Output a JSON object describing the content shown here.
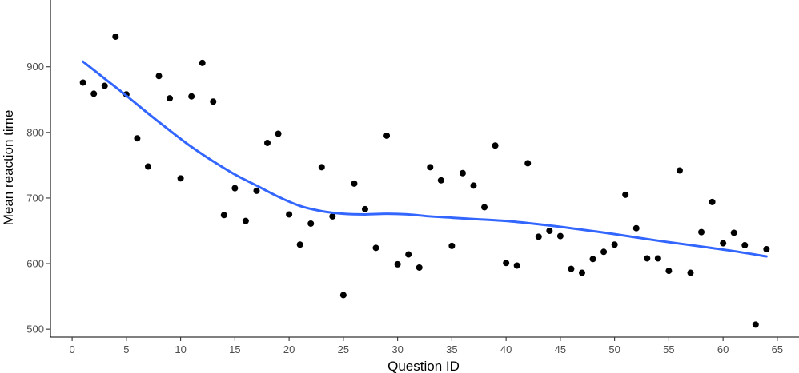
{
  "chart_data": {
    "type": "scatter",
    "xlabel": "Question ID",
    "ylabel": "Mean reaction time",
    "xlim": [
      -2,
      67
    ],
    "ylim": [
      488,
      1002
    ],
    "x_ticks": [
      0,
      5,
      10,
      15,
      20,
      25,
      30,
      35,
      40,
      45,
      50,
      55,
      60,
      65
    ],
    "y_ticks": [
      500,
      600,
      700,
      800,
      900
    ],
    "grid": false,
    "legend": "none",
    "series": [
      {
        "type": "scatter",
        "color": "#000000",
        "points": [
          {
            "x": 1,
            "y": 876
          },
          {
            "x": 2,
            "y": 859
          },
          {
            "x": 3,
            "y": 871
          },
          {
            "x": 4,
            "y": 946
          },
          {
            "x": 5,
            "y": 858
          },
          {
            "x": 6,
            "y": 791
          },
          {
            "x": 7,
            "y": 748
          },
          {
            "x": 8,
            "y": 886
          },
          {
            "x": 9,
            "y": 852
          },
          {
            "x": 10,
            "y": 730
          },
          {
            "x": 11,
            "y": 855
          },
          {
            "x": 12,
            "y": 906
          },
          {
            "x": 13,
            "y": 847
          },
          {
            "x": 14,
            "y": 674
          },
          {
            "x": 15,
            "y": 715
          },
          {
            "x": 16,
            "y": 665
          },
          {
            "x": 17,
            "y": 711
          },
          {
            "x": 18,
            "y": 784
          },
          {
            "x": 19,
            "y": 798
          },
          {
            "x": 20,
            "y": 675
          },
          {
            "x": 21,
            "y": 629
          },
          {
            "x": 22,
            "y": 661
          },
          {
            "x": 23,
            "y": 747
          },
          {
            "x": 24,
            "y": 672
          },
          {
            "x": 25,
            "y": 552
          },
          {
            "x": 26,
            "y": 722
          },
          {
            "x": 27,
            "y": 683
          },
          {
            "x": 28,
            "y": 624
          },
          {
            "x": 29,
            "y": 795
          },
          {
            "x": 30,
            "y": 599
          },
          {
            "x": 31,
            "y": 614
          },
          {
            "x": 32,
            "y": 594
          },
          {
            "x": 33,
            "y": 747
          },
          {
            "x": 34,
            "y": 727
          },
          {
            "x": 35,
            "y": 627
          },
          {
            "x": 36,
            "y": 738
          },
          {
            "x": 37,
            "y": 719
          },
          {
            "x": 38,
            "y": 686
          },
          {
            "x": 39,
            "y": 780
          },
          {
            "x": 40,
            "y": 601
          },
          {
            "x": 41,
            "y": 597
          },
          {
            "x": 42,
            "y": 753
          },
          {
            "x": 43,
            "y": 641
          },
          {
            "x": 44,
            "y": 650
          },
          {
            "x": 45,
            "y": 642
          },
          {
            "x": 46,
            "y": 592
          },
          {
            "x": 47,
            "y": 586
          },
          {
            "x": 48,
            "y": 607
          },
          {
            "x": 49,
            "y": 618
          },
          {
            "x": 50,
            "y": 629
          },
          {
            "x": 51,
            "y": 705
          },
          {
            "x": 52,
            "y": 654
          },
          {
            "x": 53,
            "y": 608
          },
          {
            "x": 54,
            "y": 608
          },
          {
            "x": 55,
            "y": 589
          },
          {
            "x": 56,
            "y": 742
          },
          {
            "x": 57,
            "y": 586
          },
          {
            "x": 58,
            "y": 648
          },
          {
            "x": 59,
            "y": 694
          },
          {
            "x": 60,
            "y": 631
          },
          {
            "x": 61,
            "y": 647
          },
          {
            "x": 62,
            "y": 628
          },
          {
            "x": 63,
            "y": 507
          },
          {
            "x": 64,
            "y": 622
          }
        ]
      },
      {
        "type": "line",
        "smooth": true,
        "color": "#3366ff",
        "points": [
          {
            "x": 1,
            "y": 908
          },
          {
            "x": 3,
            "y": 882
          },
          {
            "x": 5,
            "y": 856
          },
          {
            "x": 7,
            "y": 829
          },
          {
            "x": 9,
            "y": 803
          },
          {
            "x": 11,
            "y": 778
          },
          {
            "x": 13,
            "y": 756
          },
          {
            "x": 15,
            "y": 736
          },
          {
            "x": 17,
            "y": 719
          },
          {
            "x": 19,
            "y": 702
          },
          {
            "x": 21,
            "y": 688
          },
          {
            "x": 23,
            "y": 680
          },
          {
            "x": 25,
            "y": 676
          },
          {
            "x": 27,
            "y": 675
          },
          {
            "x": 29,
            "y": 676
          },
          {
            "x": 31,
            "y": 675
          },
          {
            "x": 33,
            "y": 672
          },
          {
            "x": 35,
            "y": 670
          },
          {
            "x": 37,
            "y": 668
          },
          {
            "x": 40,
            "y": 665
          },
          {
            "x": 43,
            "y": 660
          },
          {
            "x": 46,
            "y": 654
          },
          {
            "x": 50,
            "y": 645
          },
          {
            "x": 54,
            "y": 635
          },
          {
            "x": 58,
            "y": 626
          },
          {
            "x": 61,
            "y": 619
          },
          {
            "x": 64,
            "y": 611
          }
        ]
      }
    ]
  }
}
